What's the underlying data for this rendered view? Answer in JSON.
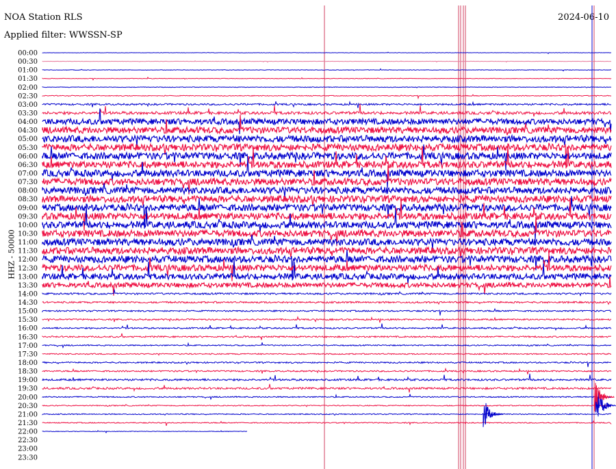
{
  "header": {
    "title": "NOA Station RLS",
    "filter": "Applied filter: WWSSN-SP",
    "date": "2024-06-10"
  },
  "chart_data": {
    "type": "line",
    "title": "NOA Station RLS",
    "ylabel": "HHZ - 50000",
    "colors": {
      "odd": "#0000cc",
      "even": "#ee1144",
      "faint": "#e8789a",
      "marker": "#d04060"
    },
    "rows": [
      "00:00",
      "00:30",
      "01:00",
      "01:30",
      "02:00",
      "02:30",
      "03:00",
      "03:30",
      "04:00",
      "04:30",
      "05:00",
      "05:30",
      "06:00",
      "06:30",
      "07:00",
      "07:30",
      "08:00",
      "08:30",
      "09:00",
      "09:30",
      "10:00",
      "10:30",
      "11:00",
      "11:30",
      "12:00",
      "12:30",
      "13:00",
      "13:30",
      "14:00",
      "14:30",
      "15:00",
      "15:30",
      "16:00",
      "16:30",
      "17:00",
      "17:30",
      "18:00",
      "18:30",
      "19:00",
      "19:30",
      "20:00",
      "20:30",
      "21:00",
      "21:30",
      "22:00",
      "22:30",
      "23:00",
      "23:30"
    ],
    "relative_noise_level": [
      0.3,
      0.3,
      0.5,
      0.5,
      0.6,
      0.8,
      1.8,
      3,
      6,
      6.5,
      7,
      7,
      7,
      7,
      7,
      7,
      7,
      7,
      7,
      7,
      7,
      7,
      7,
      7,
      7,
      6.5,
      6,
      5,
      1.8,
      1.8,
      1.5,
      1.5,
      1.5,
      1.5,
      1.2,
      1.2,
      1.5,
      1.5,
      2,
      2,
      1.2,
      1,
      1,
      1,
      0.6,
      0,
      0,
      0
    ],
    "trace_end_fraction_last_row": 0.36
  }
}
